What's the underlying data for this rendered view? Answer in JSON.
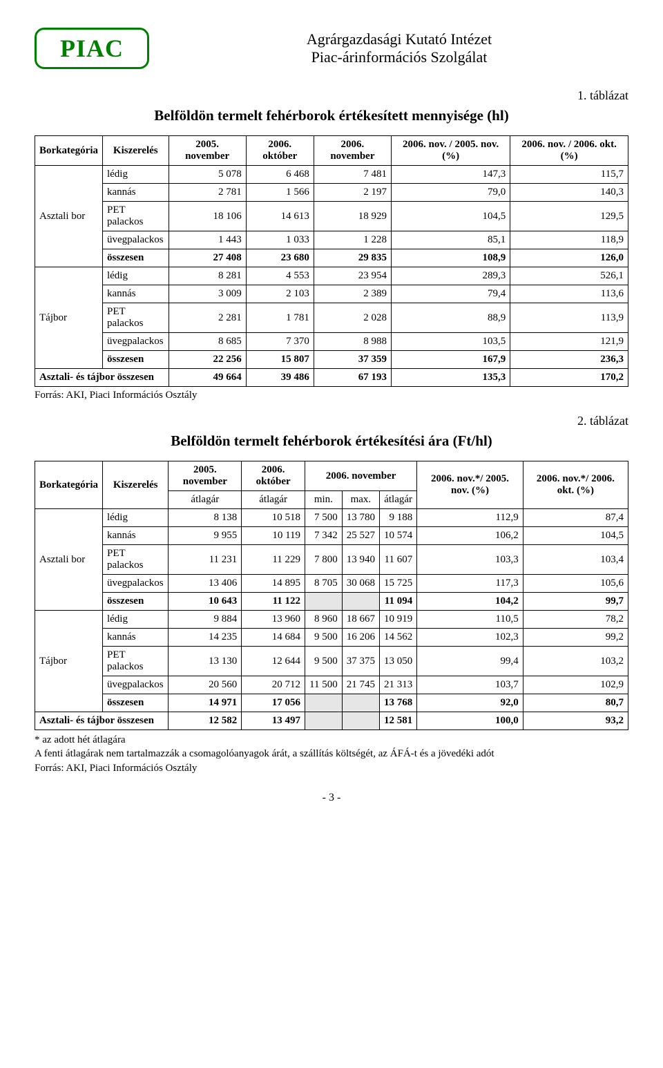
{
  "logo": {
    "text": "PIAC",
    "border_color": "#008000",
    "text_color": "#008000"
  },
  "header": {
    "line1": "Agrárgazdasági Kutató Intézet",
    "line2": "Piac-árinformációs Szolgálat"
  },
  "table1": {
    "label": "1. táblázat",
    "title": "Belföldön termelt fehérborok értékesített mennyisége (hl)",
    "columns": {
      "cat": "Borkategória",
      "pack": "Kiszerelés",
      "c2005nov": "2005. november",
      "c2006okt": "2006. október",
      "c2006nov": "2006. november",
      "pct1": "2006. nov. / 2005. nov. (%)",
      "pct2": "2006. nov. / 2006. okt. (%)"
    },
    "groups": [
      {
        "name": "Asztali bor",
        "rows": [
          {
            "pack": "lédig",
            "v": [
              "5 078",
              "6 468",
              "7 481",
              "147,3",
              "115,7"
            ]
          },
          {
            "pack": "kannás",
            "v": [
              "2 781",
              "1 566",
              "2 197",
              "79,0",
              "140,3"
            ]
          },
          {
            "pack": "PET palackos",
            "v": [
              "18 106",
              "14 613",
              "18 929",
              "104,5",
              "129,5"
            ]
          },
          {
            "pack": "üvegpalackos",
            "v": [
              "1 443",
              "1 033",
              "1 228",
              "85,1",
              "118,9"
            ]
          },
          {
            "pack": "összesen",
            "bold": true,
            "v": [
              "27 408",
              "23 680",
              "29 835",
              "108,9",
              "126,0"
            ]
          }
        ]
      },
      {
        "name": "Tájbor",
        "rows": [
          {
            "pack": "lédig",
            "v": [
              "8 281",
              "4 553",
              "23 954",
              "289,3",
              "526,1"
            ]
          },
          {
            "pack": "kannás",
            "v": [
              "3 009",
              "2 103",
              "2 389",
              "79,4",
              "113,6"
            ]
          },
          {
            "pack": "PET palackos",
            "v": [
              "2 281",
              "1 781",
              "2 028",
              "88,9",
              "113,9"
            ]
          },
          {
            "pack": "üvegpalackos",
            "v": [
              "8 685",
              "7 370",
              "8 988",
              "103,5",
              "121,9"
            ]
          },
          {
            "pack": "összesen",
            "bold": true,
            "v": [
              "22 256",
              "15 807",
              "37 359",
              "167,9",
              "236,3"
            ]
          }
        ]
      }
    ],
    "total": {
      "label": "Asztali- és tájbor összesen",
      "v": [
        "49 664",
        "39 486",
        "67 193",
        "135,3",
        "170,2"
      ]
    },
    "source": "Forrás: AKI, Piaci Információs Osztály"
  },
  "table2": {
    "label": "2. táblázat",
    "title": "Belföldön termelt fehérborok értékesítési ára (Ft/hl)",
    "columns": {
      "cat": "Borkategória",
      "pack": "Kiszerelés",
      "c2005nov": "2005. november",
      "c2006okt": "2006. október",
      "c2006nov": "2006. november",
      "sub_atlagar": "átlagár",
      "sub_min": "min.",
      "sub_max": "max.",
      "pct1": "2006. nov.*/ 2005. nov. (%)",
      "pct2": "2006. nov.*/ 2006. okt. (%)"
    },
    "groups": [
      {
        "name": "Asztali bor",
        "rows": [
          {
            "pack": "lédig",
            "v": [
              "8 138",
              "10 518",
              "7 500",
              "13 780",
              "9 188",
              "112,9",
              "87,4"
            ]
          },
          {
            "pack": "kannás",
            "v": [
              "9 955",
              "10 119",
              "7 342",
              "25 527",
              "10 574",
              "106,2",
              "104,5"
            ]
          },
          {
            "pack": "PET palackos",
            "v": [
              "11 231",
              "11 229",
              "7 800",
              "13 940",
              "11 607",
              "103,3",
              "103,4"
            ]
          },
          {
            "pack": "üvegpalackos",
            "v": [
              "13 406",
              "14 895",
              "8 705",
              "30 068",
              "15 725",
              "117,3",
              "105,6"
            ]
          },
          {
            "pack": "összesen",
            "bold": true,
            "grey": [
              2,
              3
            ],
            "v": [
              "10 643",
              "11 122",
              "",
              "",
              "11 094",
              "104,2",
              "99,7"
            ]
          }
        ]
      },
      {
        "name": "Tájbor",
        "rows": [
          {
            "pack": "lédig",
            "v": [
              "9 884",
              "13 960",
              "8 960",
              "18 667",
              "10 919",
              "110,5",
              "78,2"
            ]
          },
          {
            "pack": "kannás",
            "v": [
              "14 235",
              "14 684",
              "9 500",
              "16 206",
              "14 562",
              "102,3",
              "99,2"
            ]
          },
          {
            "pack": "PET palackos",
            "v": [
              "13 130",
              "12 644",
              "9 500",
              "37 375",
              "13 050",
              "99,4",
              "103,2"
            ]
          },
          {
            "pack": "üvegpalackos",
            "v": [
              "20 560",
              "20 712",
              "11 500",
              "21 745",
              "21 313",
              "103,7",
              "102,9"
            ]
          },
          {
            "pack": "összesen",
            "bold": true,
            "grey": [
              2,
              3
            ],
            "v": [
              "14 971",
              "17 056",
              "",
              "",
              "13 768",
              "92,0",
              "80,7"
            ]
          }
        ]
      }
    ],
    "total": {
      "label": "Asztali- és tájbor összesen",
      "grey": [
        2,
        3
      ],
      "v": [
        "12 582",
        "13 497",
        "",
        "",
        "12 581",
        "100,0",
        "93,2"
      ]
    },
    "footnotes": [
      "* az adott hét átlagára",
      "A fenti átlagárak nem tartalmazzák a csomagolóanyagok árát, a szállítás költségét, az ÁFÁ-t és a jövedéki adót",
      "Forrás: AKI, Piaci Információs Osztály"
    ]
  },
  "page_number": "- 3 -",
  "colors": {
    "text": "#000000",
    "background": "#ffffff",
    "grey_cell": "#e6e6e6",
    "logo_green": "#008000"
  }
}
